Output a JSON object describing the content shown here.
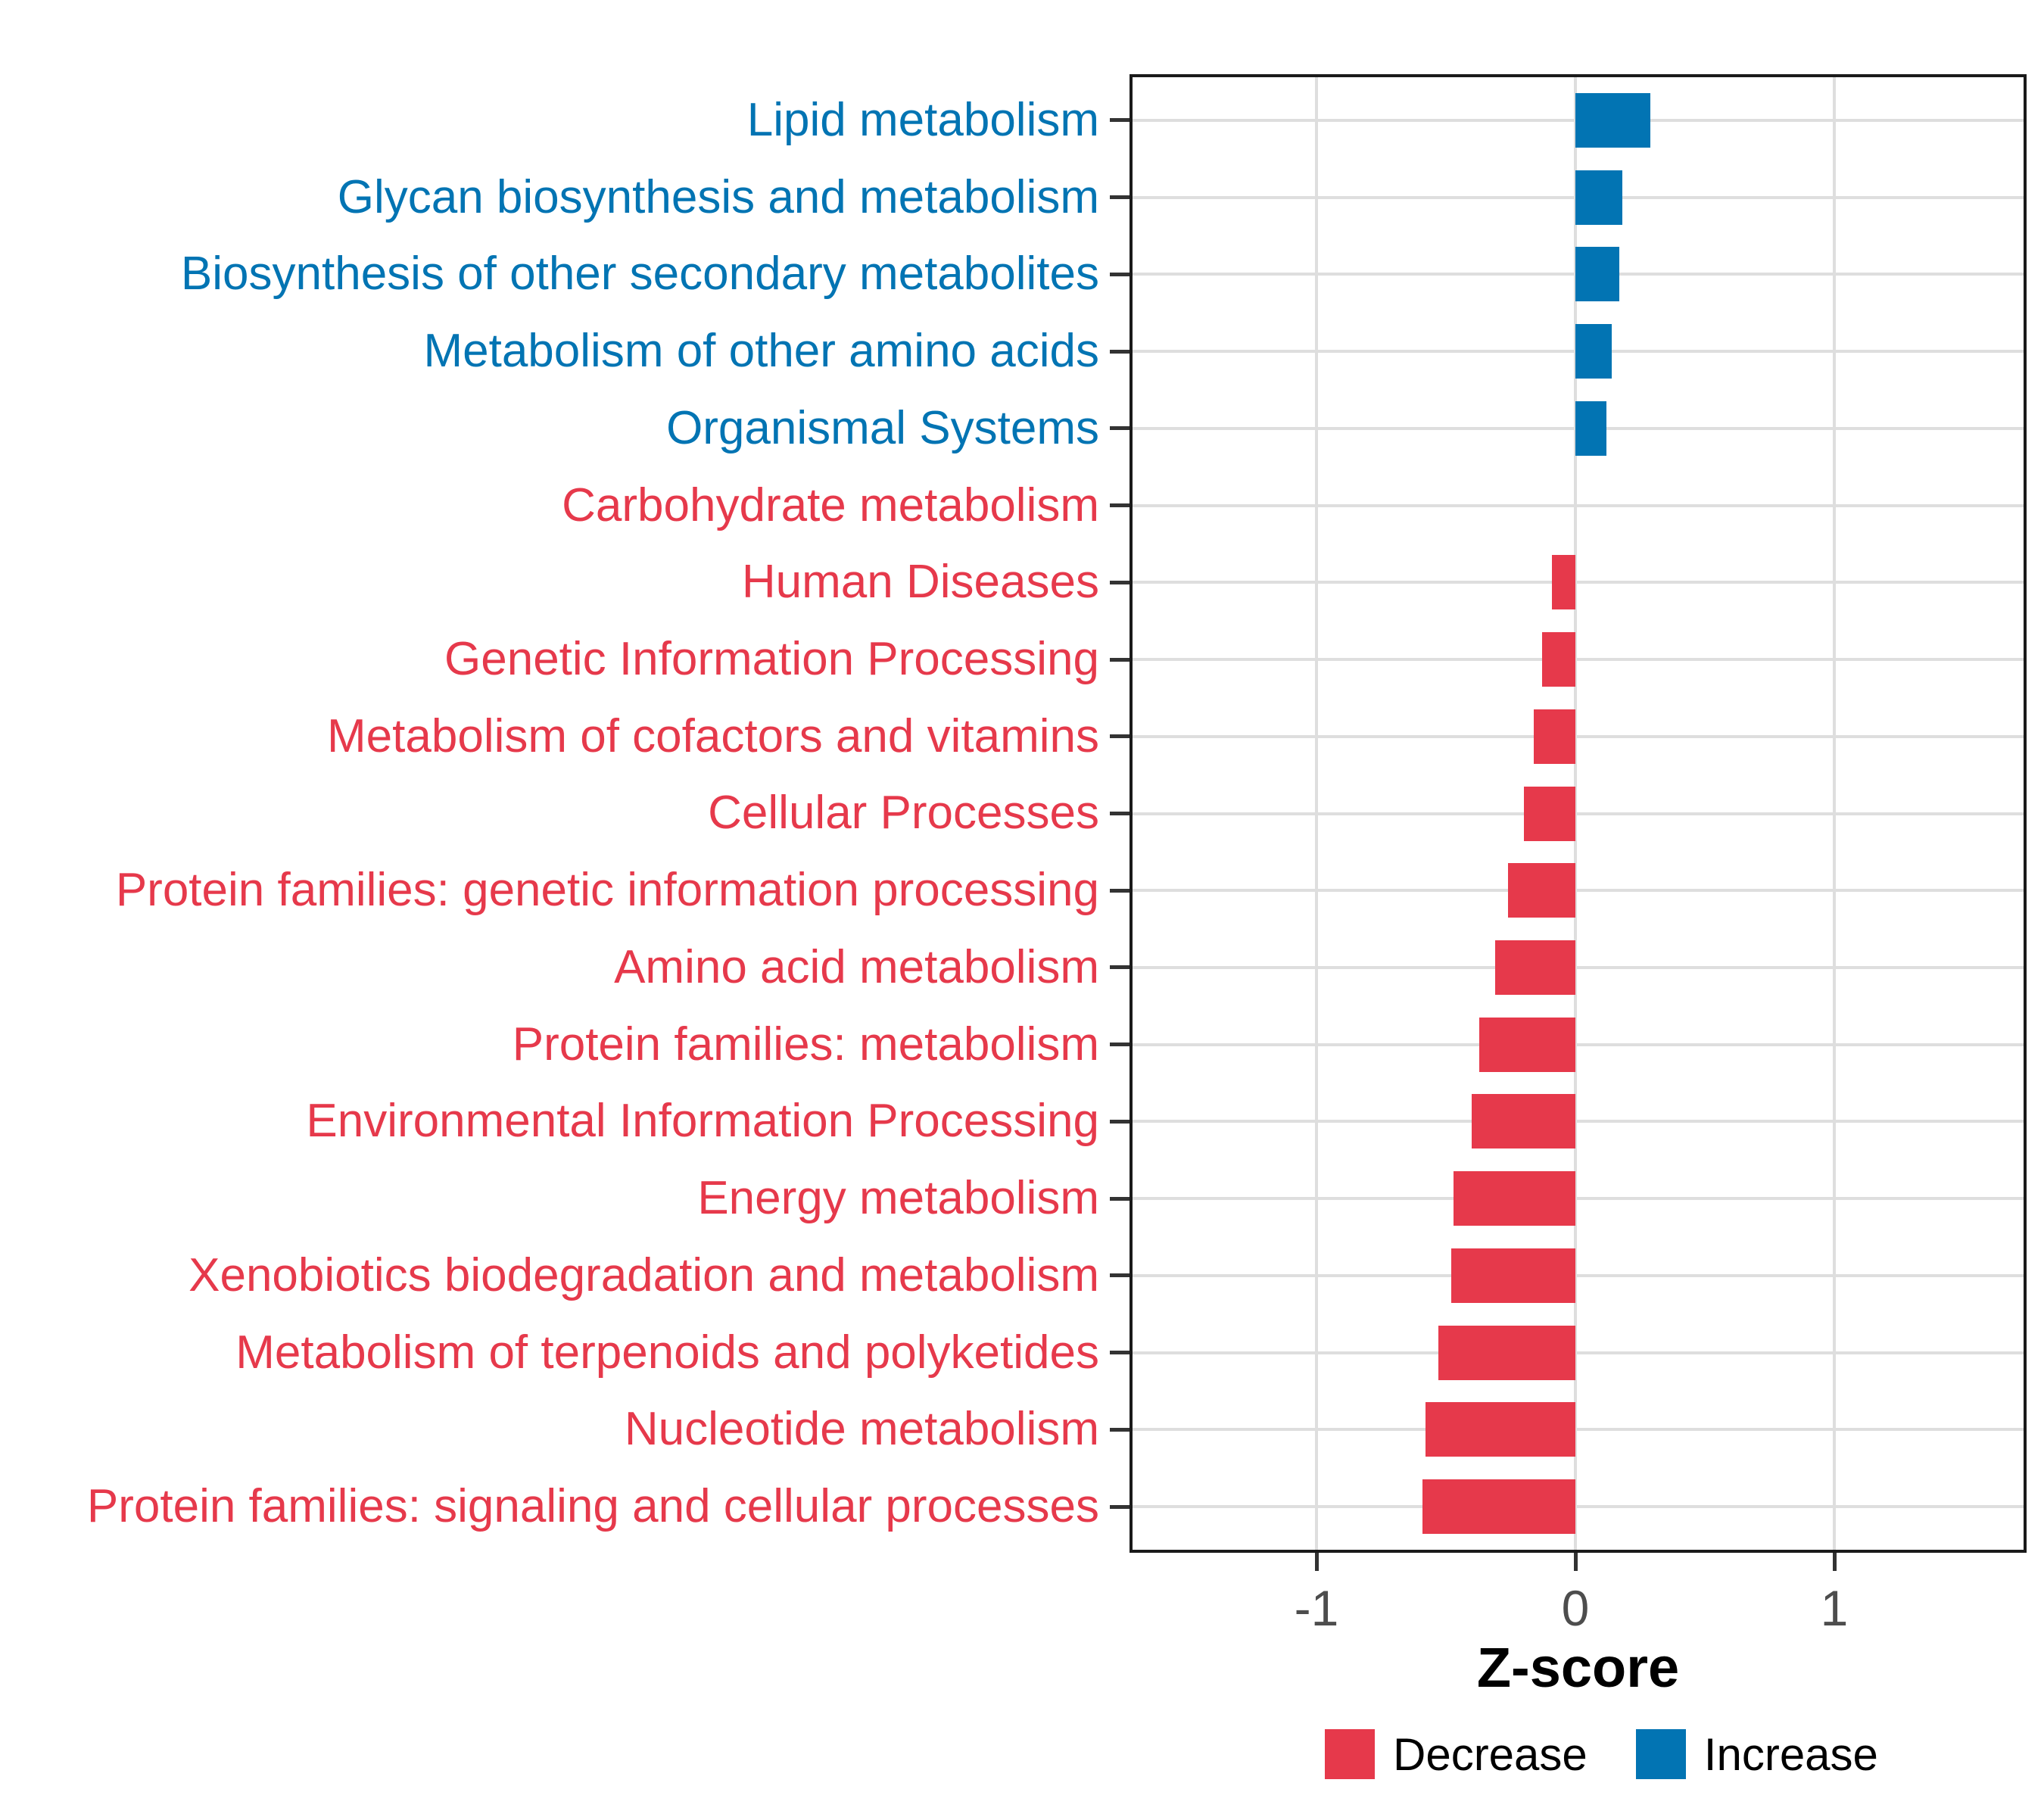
{
  "chart_data": {
    "type": "bar",
    "orientation": "horizontal",
    "xlabel": "Z-score",
    "x_ticks": [
      "-1",
      "0",
      "1"
    ],
    "x_tick_values": [
      -1,
      0,
      1
    ],
    "xlim": [
      -1.72,
      1.74
    ],
    "grid": "major-only",
    "categories": [
      "Lipid metabolism",
      "Glycan biosynthesis and metabolism",
      "Biosynthesis of other secondary metabolites",
      "Metabolism of other amino acids",
      "Organismal Systems",
      "Carbohydrate metabolism",
      "Human Diseases",
      "Genetic Information Processing",
      "Metabolism of cofactors and vitamins",
      "Cellular Processes",
      "Protein families: genetic information processing",
      "Amino acid metabolism",
      "Protein families: metabolism",
      "Environmental Information Processing",
      "Energy metabolism",
      "Xenobiotics biodegradation and metabolism",
      "Metabolism of terpenoids and polyketides",
      "Nucleotide metabolism",
      "Protein families: signaling and cellular processes"
    ],
    "values": [
      0.29,
      0.18,
      0.17,
      0.14,
      0.12,
      0.0,
      -0.09,
      -0.13,
      -0.16,
      -0.2,
      -0.26,
      -0.31,
      -0.37,
      -0.4,
      -0.47,
      -0.48,
      -0.53,
      -0.58,
      -0.59
    ],
    "directions": [
      "increase",
      "increase",
      "increase",
      "increase",
      "increase",
      "decrease",
      "decrease",
      "decrease",
      "decrease",
      "decrease",
      "decrease",
      "decrease",
      "decrease",
      "decrease",
      "decrease",
      "decrease",
      "decrease",
      "decrease",
      "decrease"
    ],
    "colors": {
      "increase": "#0274B3",
      "decrease": "#E6394B",
      "grid": "#DEDEDE",
      "axis": "#1A1A1A",
      "tick_label": "#4D4D4D"
    },
    "legend": [
      {
        "label": "Decrease",
        "color": "#E6394B"
      },
      {
        "label": "Increase",
        "color": "#0274B3"
      }
    ]
  }
}
